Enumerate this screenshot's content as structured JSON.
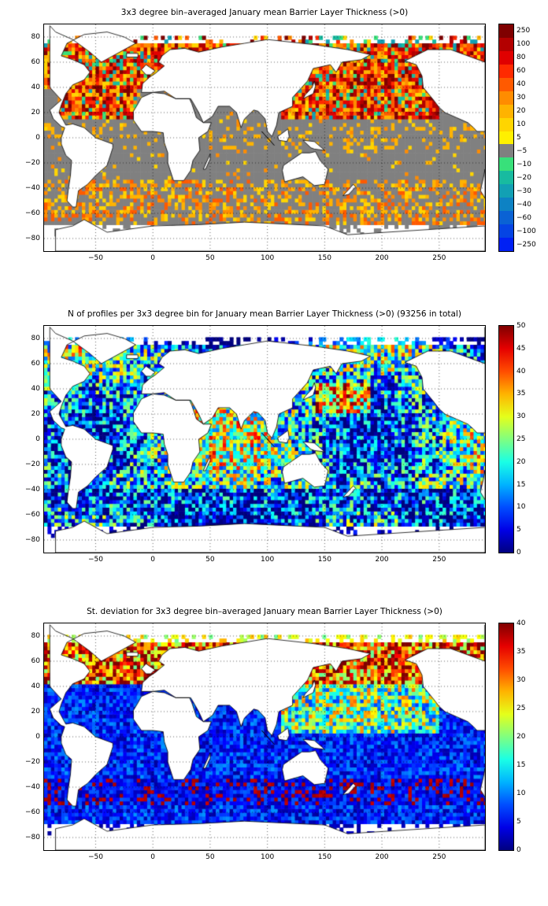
{
  "panels": [
    {
      "id": "mean",
      "title": "3x3 degree bin–averaged January mean Barrier Layer Thickness (>0)",
      "colorbar": {
        "type": "categorical",
        "labels": [
          "250",
          "100",
          "80",
          "60",
          "40",
          "30",
          "20",
          "10",
          "5",
          "−5",
          "−10",
          "−20",
          "−30",
          "−40",
          "−60",
          "−100",
          "−250"
        ],
        "colors": [
          "#7f0000",
          "#b30000",
          "#e00000",
          "#ff2a00",
          "#ff5a00",
          "#ff8c00",
          "#ffb300",
          "#ffd500",
          "#fff000",
          "#808080",
          "#38e07a",
          "#18bba0",
          "#12a0b4",
          "#0d82c4",
          "#0a62d4",
          "#0544e4",
          "#0020f4"
        ]
      }
    },
    {
      "id": "count",
      "title": "N of profiles per 3x3 degree bin for January mean Barrier Layer Thickness (>0) (93256 in total)",
      "colorbar": {
        "type": "continuous",
        "min": 0,
        "max": 50,
        "ticks": [
          50,
          45,
          40,
          35,
          30,
          25,
          20,
          15,
          10,
          5,
          0
        ]
      }
    },
    {
      "id": "stdev",
      "title": "St. deviation for 3x3 degree bin–averaged January mean Barrier Layer Thickness (>0)",
      "colorbar": {
        "type": "continuous",
        "min": 0,
        "max": 40,
        "ticks": [
          40,
          35,
          30,
          25,
          20,
          15,
          10,
          5,
          0
        ]
      }
    }
  ],
  "axes": {
    "x_ticks": [
      "−50",
      "0",
      "50",
      "100",
      "150",
      "200",
      "250"
    ],
    "y_ticks": [
      "80",
      "60",
      "40",
      "20",
      "0",
      "−20",
      "−40",
      "−60",
      "−80"
    ],
    "xlim": [
      -95,
      290
    ],
    "ylim": [
      -90,
      90
    ]
  }
}
